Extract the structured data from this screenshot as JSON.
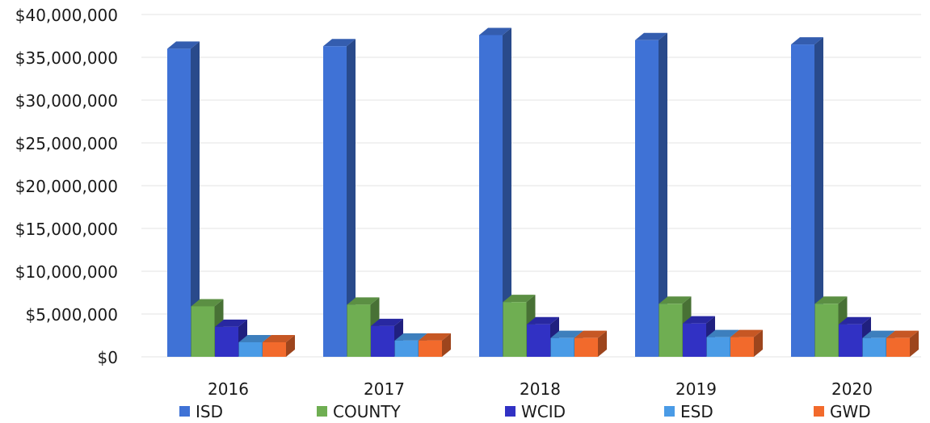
{
  "chart_data": {
    "type": "bar",
    "categories": [
      "2016",
      "2017",
      "2018",
      "2019",
      "2020"
    ],
    "series": [
      {
        "name": "ISD",
        "color": "#3f72d6",
        "values": [
          36000000,
          36300000,
          37600000,
          37000000,
          36500000
        ]
      },
      {
        "name": "COUNTY",
        "color": "#6fae52",
        "values": [
          5900000,
          6100000,
          6400000,
          6200000,
          6200000
        ]
      },
      {
        "name": "WCID",
        "color": "#3131c4",
        "values": [
          3500000,
          3600000,
          3800000,
          3900000,
          3800000
        ]
      },
      {
        "name": "ESD",
        "color": "#4a9be6",
        "values": [
          1700000,
          1900000,
          2200000,
          2300000,
          2200000
        ]
      },
      {
        "name": "GWD",
        "color": "#f26a2c",
        "values": [
          1700000,
          1900000,
          2200000,
          2300000,
          2200000
        ]
      }
    ],
    "ylim": [
      0,
      40000000
    ],
    "yticks": [
      {
        "value": 0,
        "label": "$0"
      },
      {
        "value": 5000000,
        "label": "$5,000,000"
      },
      {
        "value": 10000000,
        "label": "$10,000,000"
      },
      {
        "value": 15000000,
        "label": "$15,000,000"
      },
      {
        "value": 20000000,
        "label": "$20,000,000"
      },
      {
        "value": 25000000,
        "label": "$25,000,000"
      },
      {
        "value": 30000000,
        "label": "$30,000,000"
      },
      {
        "value": 35000000,
        "label": "$35,000,000"
      },
      {
        "value": 40000000,
        "label": "$40,000,000"
      }
    ],
    "grid": true,
    "legend_position": "bottom",
    "style": "3d-clustered"
  }
}
